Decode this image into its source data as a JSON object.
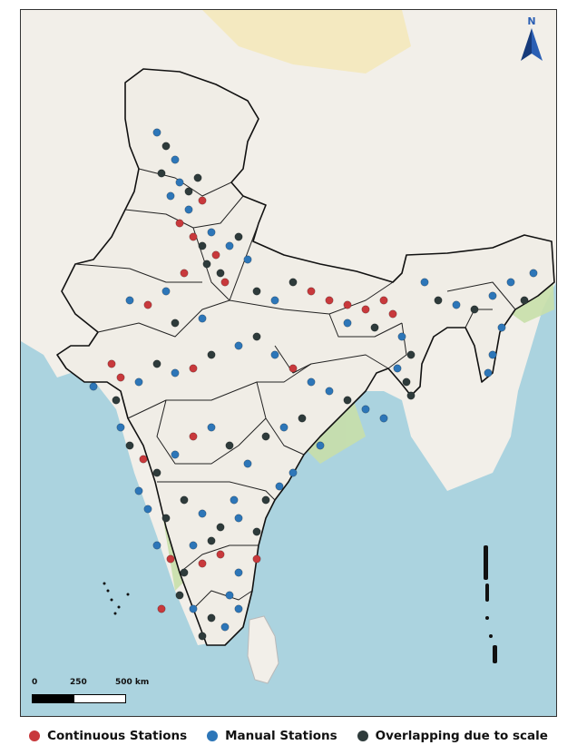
{
  "north_arrow": {
    "label": "N",
    "icon": "north-arrow-icon"
  },
  "scale": {
    "labels": [
      "0",
      "250",
      "500 km"
    ]
  },
  "legend": [
    {
      "label": "Continuous Stations",
      "color": "#c8393c"
    },
    {
      "label": "Manual Stations",
      "color": "#2d76b8"
    },
    {
      "label": "Overlapping due to scale",
      "color": "#2e3b3b"
    }
  ],
  "colors": {
    "sea": "#abd3df",
    "land": "#f2efe9",
    "forest": "#c8dfaa",
    "border": "#111111"
  }
}
